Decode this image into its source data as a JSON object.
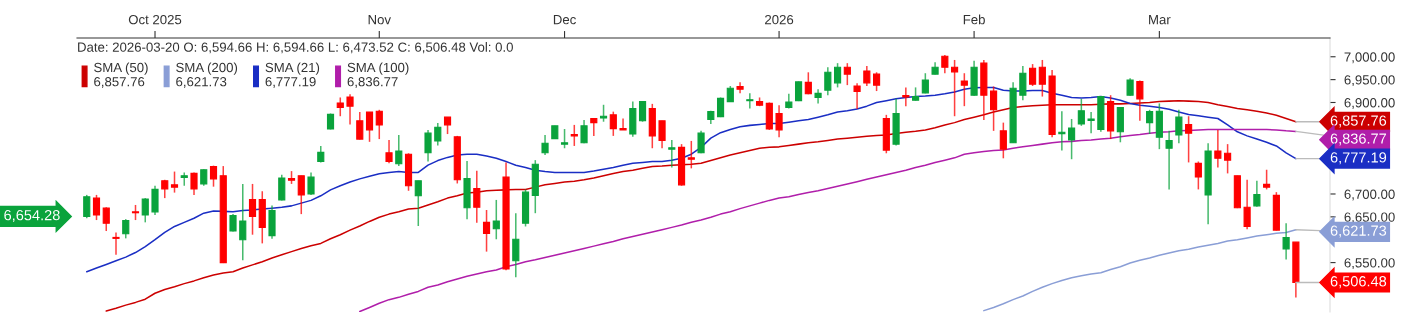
{
  "chart_data": {
    "type": "candlestick",
    "annotations": [
      "Date: 2026-03-20 O: 6,594.66 H: 6,594.66 L: 6,473.52 C: 6,506.48 Vol: 0.0",
      "6,654.28"
    ],
    "categories": [
      null,
      null,
      null,
      null,
      null,
      null,
      null,
      "Oct 2025",
      null,
      null,
      null,
      null,
      null,
      null,
      null,
      null,
      null,
      null,
      null,
      null,
      null,
      null,
      null,
      null,
      null,
      null,
      null,
      null,
      null,
      null,
      "Nov",
      null,
      null,
      null,
      null,
      null,
      null,
      null,
      null,
      null,
      null,
      null,
      null,
      null,
      null,
      null,
      null,
      null,
      null,
      "Dec",
      null,
      null,
      null,
      null,
      null,
      null,
      null,
      null,
      null,
      null,
      null,
      null,
      null,
      null,
      null,
      null,
      null,
      null,
      null,
      null,
      null,
      "2026",
      null,
      null,
      null,
      null,
      null,
      null,
      null,
      null,
      null,
      null,
      null,
      null,
      null,
      null,
      null,
      null,
      null,
      null,
      null,
      "Feb",
      null,
      null,
      null,
      null,
      null,
      null,
      null,
      null,
      null,
      null,
      null,
      null,
      null,
      null,
      null,
      null,
      null,
      null,
      "Mar",
      null,
      null,
      null,
      null,
      null,
      null,
      null,
      null,
      null,
      null,
      null,
      null,
      null,
      null
    ],
    "ohlc": [
      [
        6651,
        6698,
        6647,
        6694
      ],
      [
        6691,
        6698,
        6643,
        6654
      ],
      [
        6669,
        6671,
        6619,
        6636
      ],
      [
        6605,
        6616,
        6567,
        6603
      ],
      [
        6613,
        6645,
        6603,
        6642
      ],
      [
        6661,
        6676,
        6643,
        6659
      ],
      [
        6654,
        6691,
        6638,
        6689
      ],
      [
        6661,
        6718,
        6654,
        6710
      ],
      [
        6729,
        6731,
        6691,
        6711
      ],
      [
        6720,
        6749,
        6703,
        6715
      ],
      [
        6736,
        6747,
        6718,
        6740
      ],
      [
        6745,
        6747,
        6698,
        6711
      ],
      [
        6722,
        6754,
        6718,
        6753
      ],
      [
        6760,
        6762,
        6716,
        6733
      ],
      [
        6740,
        6761,
        6549,
        6550
      ],
      [
        6619,
        6656,
        6618,
        6653
      ],
      [
        6600,
        6722,
        6555,
        6641
      ],
      [
        6688,
        6722,
        6611,
        6651
      ],
      [
        6688,
        6706,
        6592,
        6627
      ],
      [
        6609,
        6675,
        6602,
        6664
      ],
      [
        6687,
        6742,
        6686,
        6735
      ],
      [
        6734,
        6750,
        6722,
        6730
      ],
      [
        6740,
        6740,
        6656,
        6698
      ],
      [
        6700,
        6747,
        6698,
        6737
      ],
      [
        6771,
        6805,
        6769,
        6791
      ],
      [
        6842,
        6876,
        6841,
        6874
      ],
      [
        6899,
        6911,
        6870,
        6889
      ],
      [
        6912,
        6918,
        6852,
        6892
      ],
      [
        6860,
        6879,
        6819,
        6820
      ],
      [
        6879,
        6879,
        6814,
        6840
      ],
      [
        6881,
        6884,
        6820,
        6851
      ],
      [
        6790,
        6818,
        6767,
        6771
      ],
      [
        6766,
        6829,
        6761,
        6794
      ],
      [
        6787,
        6789,
        6707,
        6718
      ],
      [
        6696,
        6729,
        6630,
        6729
      ],
      [
        6790,
        6840,
        6771,
        6833
      ],
      [
        6816,
        6855,
        6806,
        6846
      ],
      [
        6868,
        6868,
        6831,
        6851
      ],
      [
        6825,
        6827,
        6723,
        6731
      ],
      [
        6670,
        6772,
        6645,
        6734
      ],
      [
        6712,
        6751,
        6637,
        6671
      ],
      [
        6638,
        6665,
        6574,
        6614
      ],
      [
        6624,
        6687,
        6601,
        6641
      ],
      [
        6737,
        6769,
        6533,
        6536
      ],
      [
        6554,
        6658,
        6518,
        6601
      ],
      [
        6636,
        6710,
        6629,
        6704
      ],
      [
        6697,
        6774,
        6658,
        6765
      ],
      [
        6790,
        6829,
        6785,
        6811
      ],
      [
        6821,
        6849,
        6820,
        6849
      ],
      [
        6809,
        6842,
        6800,
        6812
      ],
      [
        6830,
        6851,
        6805,
        6827
      ],
      [
        6812,
        6862,
        6811,
        6849
      ],
      [
        6865,
        6865,
        6827,
        6856
      ],
      [
        6866,
        6895,
        6858,
        6870
      ],
      [
        6873,
        6880,
        6827,
        6843
      ],
      [
        6843,
        6865,
        6840,
        6840
      ],
      [
        6831,
        6902,
        6825,
        6887
      ],
      [
        6860,
        6903,
        6858,
        6902
      ],
      [
        6887,
        6897,
        6800,
        6827
      ],
      [
        6860,
        6860,
        6800,
        6817
      ],
      [
        6798,
        6818,
        6758,
        6801
      ],
      [
        6802,
        6809,
        6718,
        6720
      ],
      [
        6779,
        6816,
        6756,
        6776
      ],
      [
        6790,
        6838,
        6789,
        6833
      ],
      [
        6863,
        6882,
        6853,
        6880
      ],
      [
        6869,
        6911,
        6868,
        6909
      ],
      [
        6902,
        6936,
        6902,
        6931
      ],
      [
        6935,
        6944,
        6920,
        6929
      ],
      [
        6904,
        6920,
        6887,
        6906
      ],
      [
        6902,
        6911,
        6892,
        6894
      ],
      [
        6898,
        6900,
        6840,
        6842
      ],
      [
        6876,
        6894,
        6824,
        6840
      ],
      [
        6889,
        6919,
        6887,
        6901
      ],
      [
        6904,
        6946,
        6903,
        6945
      ],
      [
        6944,
        6966,
        6918,
        6919
      ],
      [
        6911,
        6929,
        6898,
        6920
      ],
      [
        6927,
        6977,
        6916,
        6966
      ],
      [
        6943,
        6986,
        6933,
        6977
      ],
      [
        6977,
        6986,
        6938,
        6962
      ],
      [
        6936,
        6942,
        6886,
        6924
      ],
      [
        6969,
        6980,
        6936,
        6943
      ],
      [
        6962,
        6966,
        6925,
        6938
      ],
      [
        6865,
        6873,
        6789,
        6796
      ],
      [
        6809,
        6908,
        6806,
        6876
      ],
      [
        6915,
        6933,
        6892,
        6912
      ],
      [
        6905,
        6933,
        6904,
        6913
      ],
      [
        6921,
        6964,
        6920,
        6949
      ],
      [
        6962,
        6988,
        6961,
        6977
      ],
      [
        7001,
        7004,
        6964,
        6977
      ],
      [
        6977,
        6993,
        6870,
        6967
      ],
      [
        6947,
        6964,
        6892,
        6938
      ],
      [
        6916,
        6991,
        6915,
        6977
      ],
      [
        6986,
        6993,
        6862,
        6916
      ],
      [
        6925,
        6935,
        6838,
        6884
      ],
      [
        6838,
        6856,
        6778,
        6798
      ],
      [
        6812,
        6944,
        6812,
        6931
      ],
      [
        6916,
        6980,
        6905,
        6964
      ],
      [
        6975,
        6984,
        6936,
        6940
      ],
      [
        6977,
        6993,
        6913,
        6940
      ],
      [
        6958,
        6971,
        6824,
        6830
      ],
      [
        6832,
        6881,
        6795,
        6835
      ],
      [
        6818,
        6864,
        6776,
        6844
      ],
      [
        6853,
        6908,
        6849,
        6882
      ],
      [
        6861,
        6879,
        6833,
        6864
      ],
      [
        6841,
        6914,
        6836,
        6913
      ],
      [
        6902,
        6916,
        6820,
        6838
      ],
      [
        6836,
        6889,
        6813,
        6889
      ],
      [
        6916,
        6953,
        6915,
        6949
      ],
      [
        6946,
        6948,
        6860,
        6908
      ],
      [
        6856,
        6884,
        6831,
        6880
      ],
      [
        6824,
        6898,
        6798,
        6881
      ],
      [
        6800,
        6838,
        6710,
        6817
      ],
      [
        6829,
        6884,
        6811,
        6868
      ],
      [
        6852,
        6870,
        6769,
        6833
      ],
      [
        6767,
        6771,
        6710,
        6737
      ],
      [
        6698,
        6811,
        6634,
        6794
      ],
      [
        6794,
        6840,
        6758,
        6778
      ],
      [
        6789,
        6809,
        6745,
        6774
      ],
      [
        6740,
        6740,
        6669,
        6670
      ],
      [
        6671,
        6731,
        6623,
        6629
      ],
      [
        6674,
        6729,
        6672,
        6699
      ],
      [
        6721,
        6753,
        6710,
        6715
      ],
      [
        6697,
        6704,
        6620,
        6621
      ],
      [
        6580,
        6636,
        6557,
        6605
      ],
      [
        6594.66,
        6594.66,
        6473.52,
        6506.48
      ]
    ],
    "colors": [
      "#0aa33c",
      "#ff0000",
      "#ff0000",
      "#ff0000",
      "#0aa33c",
      "#ff0000",
      "#0aa33c",
      "#0aa33c",
      "#ff0000",
      "#ff0000",
      "#0aa33c",
      "#ff0000",
      "#0aa33c",
      "#ff0000",
      "#ff0000",
      "#0aa33c",
      "#0aa33c",
      "#ff0000",
      "#ff0000",
      "#0aa33c",
      "#0aa33c",
      "#ff0000",
      "#ff0000",
      "#0aa33c",
      "#0aa33c",
      "#0aa33c",
      "#ff0000",
      "#ff0000",
      "#ff0000",
      "#ff0000",
      "#ff0000",
      "#ff0000",
      "#0aa33c",
      "#ff0000",
      "#0aa33c",
      "#0aa33c",
      "#0aa33c",
      "#ff0000",
      "#ff0000",
      "#0aa33c",
      "#ff0000",
      "#ff0000",
      "#0aa33c",
      "#ff0000",
      "#0aa33c",
      "#0aa33c",
      "#0aa33c",
      "#0aa33c",
      "#0aa33c",
      "#0aa33c",
      "#ff0000",
      "#0aa33c",
      "#ff0000",
      "#0aa33c",
      "#ff0000",
      "#ff0000",
      "#0aa33c",
      "#0aa33c",
      "#ff0000",
      "#ff0000",
      "#0aa33c",
      "#ff0000",
      "#ff0000",
      "#0aa33c",
      "#0aa33c",
      "#0aa33c",
      "#0aa33c",
      "#ff0000",
      "#0aa33c",
      "#ff0000",
      "#ff0000",
      "#ff0000",
      "#0aa33c",
      "#0aa33c",
      "#ff0000",
      "#0aa33c",
      "#0aa33c",
      "#0aa33c",
      "#ff0000",
      "#ff0000",
      "#ff0000",
      "#ff0000",
      "#ff0000",
      "#0aa33c",
      "#ff0000",
      "#0aa33c",
      "#0aa33c",
      "#0aa33c",
      "#ff0000",
      "#ff0000",
      "#ff0000",
      "#0aa33c",
      "#ff0000",
      "#ff0000",
      "#ff0000",
      "#0aa33c",
      "#0aa33c",
      "#ff0000",
      "#ff0000",
      "#ff0000",
      "#0aa33c",
      "#0aa33c",
      "#0aa33c",
      "#0aa33c",
      "#0aa33c",
      "#ff0000",
      "#0aa33c",
      "#0aa33c",
      "#ff0000",
      "#0aa33c",
      "#0aa33c",
      "#0aa33c",
      "#0aa33c",
      "#ff0000",
      "#ff0000",
      "#0aa33c",
      "#ff0000",
      "#ff0000",
      "#ff0000",
      "#ff0000",
      "#0aa33c",
      "#ff0000",
      "#ff0000",
      "#0aa33c",
      "#ff0000"
    ],
    "value_labels": [
      null,
      null,
      null,
      null,
      null,
      null,
      null,
      null,
      null,
      null,
      null,
      null,
      null,
      null,
      null,
      null,
      null,
      null,
      null,
      null,
      null,
      null,
      null,
      null,
      null,
      null,
      null,
      null,
      null,
      null,
      null,
      null,
      null,
      null,
      null,
      null,
      null,
      null,
      null,
      null,
      null,
      null,
      null,
      null,
      null,
      null,
      null,
      null,
      null,
      null,
      null,
      null,
      null,
      null,
      null,
      null,
      null,
      null,
      null,
      null,
      null,
      null,
      null,
      null,
      null,
      null,
      null,
      null,
      null,
      null,
      null,
      null,
      null,
      null,
      null,
      null,
      null,
      null,
      null,
      null,
      null,
      null,
      null,
      null,
      null,
      null,
      null,
      null,
      null,
      null,
      null,
      null,
      null,
      null,
      null,
      null,
      null,
      null,
      null,
      null,
      null,
      null,
      null,
      null,
      null,
      null,
      null,
      null,
      null,
      null,
      null,
      null,
      null,
      null,
      null,
      null,
      null,
      null,
      null,
      null,
      null,
      null,
      null,
      null,
      "6,506.48"
    ],
    "series": [
      {
        "name": "SMA (50)",
        "type": "line",
        "color": "#cc0000",
        "values": [
          null,
          null,
          6444,
          6450,
          6457,
          6463,
          6470,
          6483,
          6491,
          6497,
          6504,
          6510,
          6517,
          6523,
          6527,
          6530,
          6538,
          6545,
          6552,
          6560,
          6567,
          6574,
          6581,
          6587,
          6592,
          6602,
          6611,
          6621,
          6630,
          6640,
          6649,
          6656,
          6661,
          6667,
          6669,
          6676,
          6683,
          6691,
          6696,
          6702,
          6704,
          6707,
          6708,
          6709,
          6710,
          6710,
          6715,
          6720,
          6723,
          6726,
          6728,
          6731,
          6735,
          6740,
          6745,
          6749,
          6752,
          6756,
          6760,
          6761,
          6763,
          6764,
          6765,
          6767,
          6773,
          6779,
          6785,
          6790,
          6795,
          6800,
          6802,
          6803,
          6806,
          6809,
          6812,
          6814,
          6817,
          6820,
          6822,
          6824,
          6826,
          6828,
          6829,
          6832,
          6835,
          6837,
          6840,
          6845,
          6851,
          6856,
          6863,
          6868,
          6873,
          6879,
          6884,
          6889,
          6891,
          6893,
          6894,
          6895,
          6895,
          6895,
          6895,
          6895,
          6896,
          6897,
          6897,
          6898,
          6899,
          6900,
          6902,
          6903,
          6904,
          6903,
          6902,
          6900,
          6895,
          6891,
          6887,
          6884,
          6881,
          6877,
          6872,
          6865,
          6857.76
        ],
        "value_labels": [
          null,
          null,
          null,
          null,
          null,
          null,
          null,
          null,
          null,
          null,
          null,
          null,
          null,
          null,
          null,
          null,
          null,
          null,
          null,
          null,
          null,
          null,
          null,
          null,
          null,
          null,
          null,
          null,
          null,
          null,
          null,
          null,
          null,
          null,
          null,
          null,
          null,
          null,
          null,
          null,
          null,
          null,
          null,
          null,
          null,
          null,
          null,
          null,
          null,
          null,
          null,
          null,
          null,
          null,
          null,
          null,
          null,
          null,
          null,
          null,
          null,
          null,
          null,
          null,
          null,
          null,
          null,
          null,
          null,
          null,
          null,
          null,
          null,
          null,
          null,
          null,
          null,
          null,
          null,
          null,
          null,
          null,
          null,
          null,
          null,
          null,
          null,
          null,
          null,
          null,
          null,
          null,
          null,
          null,
          null,
          null,
          null,
          null,
          null,
          null,
          null,
          null,
          null,
          null,
          null,
          null,
          null,
          null,
          null,
          null,
          null,
          null,
          null,
          null,
          null,
          null,
          null,
          null,
          null,
          null,
          null,
          null,
          null,
          null,
          "6,857.76"
        ]
      },
      {
        "name": "SMA (200)",
        "type": "line",
        "color": "#8a9ed6",
        "values": [
          null,
          null,
          null,
          null,
          null,
          null,
          null,
          null,
          null,
          null,
          null,
          null,
          null,
          null,
          null,
          null,
          null,
          null,
          null,
          null,
          null,
          null,
          null,
          null,
          null,
          null,
          null,
          null,
          null,
          null,
          null,
          null,
          null,
          null,
          null,
          null,
          null,
          null,
          null,
          null,
          null,
          null,
          null,
          null,
          null,
          null,
          null,
          null,
          null,
          null,
          null,
          null,
          null,
          null,
          null,
          null,
          null,
          null,
          null,
          null,
          null,
          null,
          null,
          null,
          null,
          null,
          null,
          null,
          null,
          null,
          null,
          null,
          null,
          null,
          null,
          null,
          null,
          null,
          null,
          null,
          null,
          null,
          null,
          null,
          null,
          null,
          null,
          null,
          null,
          null,
          null,
          null,
          6445,
          6452,
          6460,
          6469,
          6477,
          6487,
          6496,
          6504,
          6511,
          6517,
          6521,
          6525,
          6528,
          6535,
          6541,
          6549,
          6555,
          6560,
          6566,
          6571,
          6576,
          6579,
          6584,
          6588,
          6592,
          6597,
          6600,
          6604,
          6608,
          6611,
          6614,
          6616,
          6621.73
        ],
        "value_labels": [
          null,
          null,
          null,
          null,
          null,
          null,
          null,
          null,
          null,
          null,
          null,
          null,
          null,
          null,
          null,
          null,
          null,
          null,
          null,
          null,
          null,
          null,
          null,
          null,
          null,
          null,
          null,
          null,
          null,
          null,
          null,
          null,
          null,
          null,
          null,
          null,
          null,
          null,
          null,
          null,
          null,
          null,
          null,
          null,
          null,
          null,
          null,
          null,
          null,
          null,
          null,
          null,
          null,
          null,
          null,
          null,
          null,
          null,
          null,
          null,
          null,
          null,
          null,
          null,
          null,
          null,
          null,
          null,
          null,
          null,
          null,
          null,
          null,
          null,
          null,
          null,
          null,
          null,
          null,
          null,
          null,
          null,
          null,
          null,
          null,
          null,
          null,
          null,
          null,
          null,
          null,
          null,
          null,
          null,
          null,
          null,
          null,
          null,
          null,
          null,
          null,
          null,
          null,
          null,
          null,
          null,
          null,
          null,
          null,
          null,
          null,
          null,
          null,
          null,
          null,
          null,
          null,
          null,
          null,
          null,
          null,
          null,
          null,
          null,
          "6,621.73"
        ]
      },
      {
        "name": "SMA (21)",
        "type": "line",
        "color": "#1a2ec4",
        "values": [
          6530,
          6538,
          6546,
          6554,
          6562,
          6572,
          6585,
          6600,
          6616,
          6629,
          6638,
          6647,
          6658,
          6663,
          6662,
          6661,
          6664,
          6665,
          6667,
          6669,
          6671,
          6674,
          6680,
          6686,
          6696,
          6709,
          6718,
          6726,
          6733,
          6739,
          6744,
          6747,
          6749,
          6747,
          6747,
          6763,
          6773,
          6780,
          6785,
          6787,
          6787,
          6783,
          6778,
          6771,
          6763,
          6758,
          6752,
          6749,
          6747,
          6747,
          6747,
          6747,
          6750,
          6754,
          6758,
          6763,
          6767,
          6769,
          6771,
          6771,
          6774,
          6778,
          6787,
          6802,
          6822,
          6834,
          6841,
          6847,
          6850,
          6852,
          6854,
          6854,
          6857,
          6860,
          6863,
          6868,
          6873,
          6879,
          6882,
          6886,
          6892,
          6900,
          6904,
          6908,
          6911,
          6913,
          6914,
          6916,
          6919,
          6923,
          6929,
          6932,
          6933,
          6933,
          6927,
          6925,
          6925,
          6926,
          6926,
          6920,
          6916,
          6911,
          6910,
          6911,
          6913,
          6910,
          6905,
          6898,
          6894,
          6892,
          6889,
          6885,
          6879,
          6874,
          6871,
          6868,
          6865,
          6851,
          6836,
          6827,
          6820,
          6813,
          6805,
          6790,
          6777.19
        ],
        "value_labels": [
          null,
          null,
          null,
          null,
          null,
          null,
          null,
          null,
          null,
          null,
          null,
          null,
          null,
          null,
          null,
          null,
          null,
          null,
          null,
          null,
          null,
          null,
          null,
          null,
          null,
          null,
          null,
          null,
          null,
          null,
          null,
          null,
          null,
          null,
          null,
          null,
          null,
          null,
          null,
          null,
          null,
          null,
          null,
          null,
          null,
          null,
          null,
          null,
          null,
          null,
          null,
          null,
          null,
          null,
          null,
          null,
          null,
          null,
          null,
          null,
          null,
          null,
          null,
          null,
          null,
          null,
          null,
          null,
          null,
          null,
          null,
          null,
          null,
          null,
          null,
          null,
          null,
          null,
          null,
          null,
          null,
          null,
          null,
          null,
          null,
          null,
          null,
          null,
          null,
          null,
          null,
          null,
          null,
          null,
          null,
          null,
          null,
          null,
          null,
          null,
          null,
          null,
          null,
          null,
          null,
          null,
          null,
          null,
          null,
          null,
          null,
          null,
          null,
          null,
          null,
          null,
          null,
          null,
          null,
          null,
          null,
          null,
          null,
          null,
          "6,777.19"
        ]
      },
      {
        "name": "SMA (100)",
        "type": "line",
        "color": "#b01eaa",
        "values": [
          null,
          null,
          null,
          null,
          null,
          null,
          null,
          null,
          null,
          null,
          null,
          null,
          null,
          null,
          null,
          null,
          null,
          null,
          null,
          null,
          null,
          null,
          null,
          null,
          null,
          null,
          null,
          null,
          6443,
          6452,
          6461,
          6469,
          6474,
          6481,
          6487,
          6496,
          6501,
          6508,
          6514,
          6520,
          6525,
          6530,
          6534,
          6541,
          6546,
          6552,
          6556,
          6561,
          6566,
          6571,
          6576,
          6581,
          6586,
          6591,
          6596,
          6602,
          6607,
          6612,
          6617,
          6622,
          6627,
          6632,
          6638,
          6643,
          6649,
          6656,
          6661,
          6668,
          6674,
          6680,
          6686,
          6691,
          6694,
          6699,
          6703,
          6707,
          6712,
          6717,
          6722,
          6727,
          6732,
          6737,
          6742,
          6747,
          6752,
          6758,
          6763,
          6769,
          6774,
          6779,
          6787,
          6790,
          6793,
          6795,
          6796,
          6800,
          6803,
          6806,
          6809,
          6812,
          6814,
          6815,
          6817,
          6818,
          6820,
          6822,
          6825,
          6828,
          6830,
          6833,
          6835,
          6836,
          6838,
          6839,
          6840,
          6841,
          6841,
          6841,
          6841,
          6841,
          6841,
          6841,
          6840,
          6838,
          6836.77
        ],
        "value_labels": [
          null,
          null,
          null,
          null,
          null,
          null,
          null,
          null,
          null,
          null,
          null,
          null,
          null,
          null,
          null,
          null,
          null,
          null,
          null,
          null,
          null,
          null,
          null,
          null,
          null,
          null,
          null,
          null,
          null,
          null,
          null,
          null,
          null,
          null,
          null,
          null,
          null,
          null,
          null,
          null,
          null,
          null,
          null,
          null,
          null,
          null,
          null,
          null,
          null,
          null,
          null,
          null,
          null,
          null,
          null,
          null,
          null,
          null,
          null,
          null,
          null,
          null,
          null,
          null,
          null,
          null,
          null,
          null,
          null,
          null,
          null,
          null,
          null,
          null,
          null,
          null,
          null,
          null,
          null,
          null,
          null,
          null,
          null,
          null,
          null,
          null,
          null,
          null,
          null,
          null,
          null,
          null,
          null,
          null,
          null,
          null,
          null,
          null,
          null,
          null,
          null,
          null,
          null,
          null,
          null,
          null,
          null,
          null,
          null,
          null,
          null,
          null,
          null,
          null,
          null,
          null,
          null,
          null,
          null,
          null,
          null,
          null,
          null,
          null,
          "6,836.77"
        ]
      }
    ],
    "ylim": [
      6442,
      7041
    ],
    "yticks": [
      {
        "value": 6550,
        "label": "6,550.00"
      },
      {
        "value": 6650,
        "label": "6,650.00"
      },
      {
        "value": 6700,
        "label": "6,700.00"
      },
      {
        "value": 6900,
        "label": "6,900.00"
      },
      {
        "value": 6950,
        "label": "6,950.00"
      },
      {
        "value": 7000,
        "label": "7,000.00"
      }
    ],
    "legend": "top left"
  }
}
